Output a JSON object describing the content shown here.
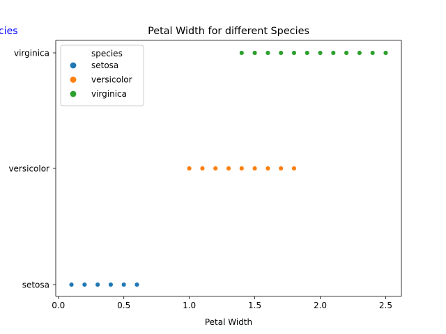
{
  "chart_data": {
    "type": "scatter",
    "title": "Petal Width for different Species",
    "xlabel": "Petal Width",
    "ylabel": "",
    "clipped_label": "cies",
    "xlim": [
      -0.02,
      2.62
    ],
    "xticks": [
      0.0,
      0.5,
      1.0,
      1.5,
      2.0,
      2.5
    ],
    "xtick_labels": [
      "0.0",
      "0.5",
      "1.0",
      "1.5",
      "2.0",
      "2.5"
    ],
    "categories": [
      "setosa",
      "versicolor",
      "virginica"
    ],
    "legend": {
      "title": "species",
      "position": "top-left"
    },
    "grid": false,
    "series": [
      {
        "name": "setosa",
        "color": "#1f77b4",
        "category": "setosa",
        "x": [
          0.1,
          0.2,
          0.3,
          0.4,
          0.5,
          0.6
        ]
      },
      {
        "name": "versicolor",
        "color": "#ff7f0e",
        "category": "versicolor",
        "x": [
          1.0,
          1.1,
          1.2,
          1.3,
          1.4,
          1.5,
          1.6,
          1.7,
          1.8
        ]
      },
      {
        "name": "virginica",
        "color": "#2ca02c",
        "category": "virginica",
        "x": [
          1.4,
          1.5,
          1.6,
          1.7,
          1.8,
          1.9,
          2.0,
          2.1,
          2.2,
          2.3,
          2.4,
          2.5
        ]
      }
    ]
  }
}
